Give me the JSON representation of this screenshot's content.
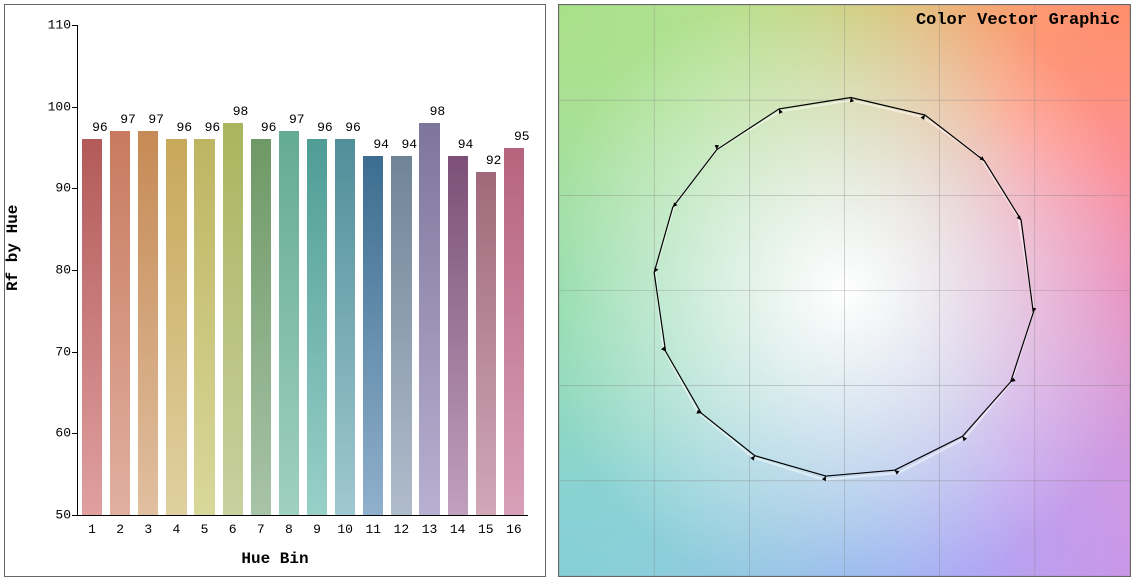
{
  "bar_chart": {
    "type": "bar",
    "title": "",
    "xlabel": "Hue Bin",
    "ylabel": "Rf by Hue",
    "label_fontsize": 16,
    "tick_fontsize": 13,
    "font_family": "Courier New",
    "ylim": [
      50,
      110
    ],
    "yticks": [
      50,
      60,
      70,
      80,
      90,
      100,
      110
    ],
    "categories": [
      "1",
      "2",
      "3",
      "4",
      "5",
      "6",
      "7",
      "8",
      "9",
      "10",
      "11",
      "12",
      "13",
      "14",
      "15",
      "16"
    ],
    "values": [
      96,
      97,
      97,
      96,
      96,
      98,
      96,
      97,
      96,
      96,
      94,
      94,
      98,
      94,
      92,
      95
    ],
    "bar_colors_top": [
      "#b35a5a",
      "#c87a5f",
      "#c68a55",
      "#c8a85a",
      "#beb562",
      "#aab55e",
      "#6e9865",
      "#64ab93",
      "#4f9d95",
      "#508e99",
      "#3c6d90",
      "#708498",
      "#7e759d",
      "#7c5078",
      "#a06a7a",
      "#b7637e"
    ],
    "bar_colors_bottom": [
      "#e0a0a0",
      "#e0b0a0",
      "#e0bfa0",
      "#e0d0a0",
      "#d8d89a",
      "#c8d0a0",
      "#a8c4a8",
      "#a0d0c0",
      "#98d0c8",
      "#a0c8d0",
      "#90b0cc",
      "#b0bccc",
      "#b8b0d0",
      "#c0a0bc",
      "#d0a8b8",
      "#d8a0b8"
    ],
    "bar_width_rel": 0.72,
    "background_color": "#ffffff",
    "border_color": "#000000",
    "value_label_fontsize": 13
  },
  "cvg": {
    "type": "color_vector_graphic",
    "title": "Color Vector Graphic",
    "title_fontsize": 17,
    "font_family": "Courier New",
    "grid_color": "#808080",
    "grid_divisions": 6,
    "reference_polygon_color": "#ffffff",
    "reference_polygon_opacity": 0.5,
    "reference_polygon_stroke_width": 2,
    "test_polygon_color": "#000000",
    "test_polygon_stroke_width": 1.2,
    "arrow_color": "#000000",
    "extent": 1.5,
    "reference_vertices": [
      [
        0.912,
        0.389
      ],
      [
        0.711,
        0.703
      ],
      [
        0.414,
        0.91
      ],
      [
        0.037,
        0.999
      ],
      [
        -0.338,
        0.941
      ],
      [
        -0.671,
        0.741
      ],
      [
        -0.895,
        0.446
      ],
      [
        -0.995,
        0.103
      ],
      [
        -0.952,
        -0.306
      ],
      [
        -0.77,
        -0.638
      ],
      [
        -0.479,
        -0.878
      ],
      [
        -0.107,
        -0.994
      ],
      [
        0.282,
        -0.959
      ],
      [
        0.629,
        -0.778
      ],
      [
        0.879,
        -0.476
      ],
      [
        0.995,
        -0.102
      ]
    ],
    "test_vertices": [
      [
        0.928,
        0.37
      ],
      [
        0.735,
        0.681
      ],
      [
        0.423,
        0.922
      ],
      [
        0.033,
        1.014
      ],
      [
        -0.344,
        0.954
      ],
      [
        -0.671,
        0.74
      ],
      [
        -0.902,
        0.438
      ],
      [
        -1.0,
        0.095
      ],
      [
        -0.94,
        -0.32
      ],
      [
        -0.752,
        -0.645
      ],
      [
        -0.471,
        -0.868
      ],
      [
        -0.098,
        -0.975
      ],
      [
        0.263,
        -0.944
      ],
      [
        0.62,
        -0.766
      ],
      [
        0.873,
        -0.48
      ],
      [
        0.992,
        -0.115
      ]
    ],
    "background_gradient": {
      "center": "#ffffff",
      "top_left": "#a8e088",
      "top_right": "#ff9850",
      "bottom_left": "#88c8e8",
      "bottom_right": "#e890d8",
      "top_mid": "#f0e860",
      "right_mid": "#ff8090",
      "bottom_mid": "#a0a0ff",
      "left_mid": "#80d8c0"
    }
  }
}
